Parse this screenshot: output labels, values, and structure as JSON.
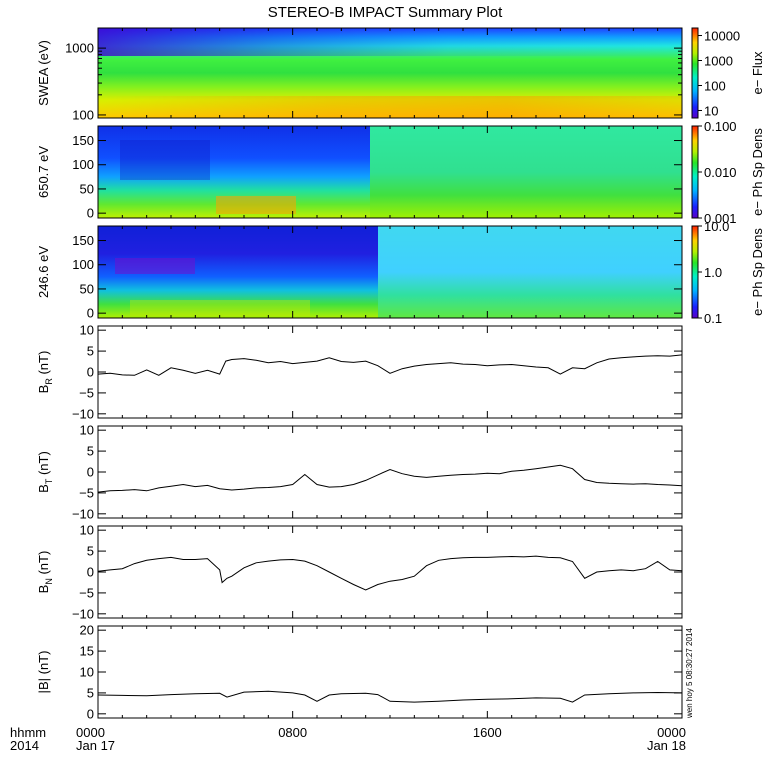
{
  "title": "STEREO-B IMPACT Summary Plot",
  "stamp": "wen hoy 5 08:30:27 2014",
  "x_axis": {
    "row_label": "hhmm",
    "year_label": "2014",
    "ticks": [
      {
        "t": 0,
        "hhmm": "0000",
        "date": "Jan 17"
      },
      {
        "t": 8,
        "hhmm": "0800",
        "date": ""
      },
      {
        "t": 16,
        "hhmm": "1600",
        "date": ""
      },
      {
        "t": 24,
        "hhmm": "0000",
        "date": "Jan 18"
      }
    ],
    "range_hours": [
      0,
      24
    ]
  },
  "chart_data": [
    {
      "type": "heatmap",
      "ylabel": "SWEA (eV)",
      "yscale": "log",
      "ylim": [
        90,
        2000
      ],
      "y_ticks": [
        {
          "v": 100,
          "label": "100"
        },
        {
          "v": 1000,
          "label": "1000"
        }
      ],
      "colorbar": {
        "label": "e− Flux",
        "scale": "log",
        "range": [
          5,
          20000
        ],
        "ticks": [
          {
            "v": 10,
            "label": "10"
          },
          {
            "v": 100,
            "label": "100"
          },
          {
            "v": 1000,
            "label": "1000"
          },
          {
            "v": 10000,
            "label": "10000"
          }
        ]
      }
    },
    {
      "type": "heatmap",
      "ylabel": "650.7 eV",
      "ylim": [
        -10,
        180
      ],
      "y_ticks": [
        {
          "v": 0,
          "label": "0"
        },
        {
          "v": 50,
          "label": "50"
        },
        {
          "v": 100,
          "label": "100"
        },
        {
          "v": 150,
          "label": "150"
        }
      ],
      "colorbar": {
        "label": "e− Ph Sp Dens",
        "scale": "log",
        "range": [
          0.001,
          0.1
        ],
        "ticks": [
          {
            "v": 0.001,
            "label": "0.001"
          },
          {
            "v": 0.01,
            "label": "0.010"
          },
          {
            "v": 0.1,
            "label": "0.100"
          }
        ]
      }
    },
    {
      "type": "heatmap",
      "ylabel": "246.6 eV",
      "ylim": [
        -10,
        180
      ],
      "y_ticks": [
        {
          "v": 0,
          "label": "0"
        },
        {
          "v": 50,
          "label": "50"
        },
        {
          "v": 100,
          "label": "100"
        },
        {
          "v": 150,
          "label": "150"
        }
      ],
      "colorbar": {
        "label": "e− Ph Sp Dens",
        "scale": "log",
        "range": [
          0.1,
          10
        ],
        "ticks": [
          {
            "v": 0.1,
            "label": "0.1"
          },
          {
            "v": 1,
            "label": "1.0"
          },
          {
            "v": 10,
            "label": "10.0"
          }
        ]
      }
    },
    {
      "type": "line",
      "ylabel": "B",
      "ylabel_sub": "R",
      "ylabel_unit": "(nT)",
      "ylim": [
        -11,
        11
      ],
      "y_ticks": [
        {
          "v": -10,
          "label": "−10"
        },
        {
          "v": -5,
          "label": "−5"
        },
        {
          "v": 0,
          "label": "0"
        },
        {
          "v": 5,
          "label": "5"
        },
        {
          "v": 10,
          "label": "10"
        }
      ],
      "x": [
        0,
        0.5,
        1,
        1.5,
        2,
        2.5,
        3,
        3.5,
        4,
        4.5,
        5,
        5.25,
        5.5,
        6,
        6.5,
        7,
        7.5,
        8,
        8.5,
        9,
        9.5,
        10,
        10.5,
        11,
        11.5,
        12,
        12.5,
        13,
        13.5,
        14,
        14.5,
        15,
        15.5,
        16,
        16.5,
        17,
        17.5,
        18,
        18.5,
        19,
        19.5,
        20,
        20.5,
        21,
        21.5,
        22,
        22.5,
        23,
        23.5,
        24
      ],
      "y": [
        -0.5,
        -0.3,
        -0.7,
        -0.8,
        0.5,
        -0.8,
        1.0,
        0.4,
        -0.3,
        0.4,
        -0.5,
        2.6,
        3.0,
        3.2,
        2.8,
        2.2,
        2.5,
        2.0,
        2.3,
        2.6,
        3.4,
        2.5,
        2.3,
        2.6,
        1.5,
        -0.3,
        0.8,
        1.4,
        1.8,
        2.0,
        2.2,
        1.9,
        1.8,
        1.5,
        1.7,
        1.8,
        1.5,
        1.2,
        1.0,
        -0.5,
        1.0,
        0.8,
        2.2,
        3.1,
        3.4,
        3.6,
        3.8,
        3.9,
        3.8,
        4.1
      ]
    },
    {
      "type": "line",
      "ylabel": "B",
      "ylabel_sub": "T",
      "ylabel_unit": "(nT)",
      "ylim": [
        -11,
        11
      ],
      "y_ticks": [
        {
          "v": -10,
          "label": "−10"
        },
        {
          "v": -5,
          "label": "−5"
        },
        {
          "v": 0,
          "label": "0"
        },
        {
          "v": 5,
          "label": "5"
        },
        {
          "v": 10,
          "label": "10"
        }
      ],
      "x": [
        0,
        0.5,
        1,
        1.5,
        2,
        2.5,
        3,
        3.5,
        4,
        4.5,
        5,
        5.5,
        6,
        6.5,
        7,
        7.5,
        8,
        8.5,
        9,
        9.5,
        10,
        10.5,
        11,
        11.5,
        12,
        12.5,
        13,
        13.5,
        14,
        14.5,
        15,
        15.5,
        16,
        16.5,
        17,
        17.5,
        18,
        18.5,
        19,
        19.5,
        20,
        20.5,
        21,
        21.5,
        22,
        22.5,
        23,
        23.5,
        24
      ],
      "y": [
        -4.8,
        -4.5,
        -4.4,
        -4.2,
        -4.5,
        -3.8,
        -3.4,
        -3.0,
        -3.5,
        -3.2,
        -4.0,
        -4.3,
        -4.1,
        -3.8,
        -3.7,
        -3.5,
        -3.0,
        -0.6,
        -3.0,
        -3.6,
        -3.5,
        -3.0,
        -2.0,
        -0.7,
        0.6,
        -0.4,
        -1.0,
        -1.3,
        -1.0,
        -0.8,
        -0.6,
        -0.5,
        -0.3,
        -0.4,
        0.2,
        0.4,
        0.8,
        1.2,
        1.6,
        0.8,
        -1.8,
        -2.5,
        -2.7,
        -2.8,
        -2.9,
        -2.8,
        -3.0,
        -3.1,
        -3.3
      ]
    },
    {
      "type": "line",
      "ylabel": "B",
      "ylabel_sub": "N",
      "ylabel_unit": "(nT)",
      "ylim": [
        -11,
        11
      ],
      "y_ticks": [
        {
          "v": -10,
          "label": "−10"
        },
        {
          "v": -5,
          "label": "−5"
        },
        {
          "v": 0,
          "label": "0"
        },
        {
          "v": 5,
          "label": "5"
        },
        {
          "v": 10,
          "label": "10"
        }
      ],
      "x": [
        0,
        0.5,
        1,
        1.5,
        2,
        2.5,
        3,
        3.5,
        4,
        4.5,
        5,
        5.1,
        5.3,
        5.5,
        6,
        6.5,
        7,
        7.5,
        8,
        8.5,
        9,
        9.5,
        10,
        10.5,
        11,
        11.5,
        12,
        12.5,
        13,
        13.5,
        14,
        14.5,
        15,
        15.5,
        16,
        16.5,
        17,
        17.5,
        18,
        18.5,
        19,
        19.5,
        20,
        20.5,
        21,
        21.5,
        22,
        22.5,
        23,
        23.5,
        24
      ],
      "y": [
        0.2,
        0.5,
        0.8,
        2.0,
        2.8,
        3.2,
        3.5,
        3.0,
        3.0,
        3.2,
        0.5,
        -2.5,
        -1.5,
        -1.0,
        1.0,
        2.2,
        2.6,
        2.9,
        3.0,
        2.6,
        1.5,
        0.0,
        -1.5,
        -3.0,
        -4.3,
        -3.0,
        -2.2,
        -1.8,
        -1.0,
        1.5,
        2.8,
        3.2,
        3.4,
        3.5,
        3.5,
        3.6,
        3.7,
        3.6,
        3.8,
        3.5,
        3.4,
        2.5,
        -1.5,
        0.0,
        0.3,
        0.5,
        0.3,
        0.8,
        2.5,
        0.5,
        0.3
      ]
    },
    {
      "type": "line",
      "ylabel": "|B|",
      "ylabel_unit": "(nT)",
      "ylim": [
        -1,
        21
      ],
      "y_ticks": [
        {
          "v": 0,
          "label": "0"
        },
        {
          "v": 5,
          "label": "5"
        },
        {
          "v": 10,
          "label": "10"
        },
        {
          "v": 15,
          "label": "15"
        },
        {
          "v": 20,
          "label": "20"
        }
      ],
      "x": [
        0,
        1,
        2,
        3,
        4,
        5,
        5.3,
        6,
        7,
        8,
        8.5,
        9,
        9.5,
        10,
        11,
        11.5,
        12,
        13,
        14,
        15,
        16,
        17,
        18,
        19,
        19.5,
        20,
        21,
        22,
        23,
        24
      ],
      "y": [
        4.5,
        4.4,
        4.3,
        4.6,
        4.8,
        4.9,
        4.0,
        5.2,
        5.4,
        5.0,
        4.5,
        3.0,
        4.5,
        4.8,
        4.9,
        4.6,
        3.0,
        2.8,
        3.0,
        3.3,
        3.5,
        3.6,
        3.8,
        3.7,
        2.8,
        4.5,
        4.8,
        5.0,
        5.1,
        5.0
      ]
    }
  ]
}
